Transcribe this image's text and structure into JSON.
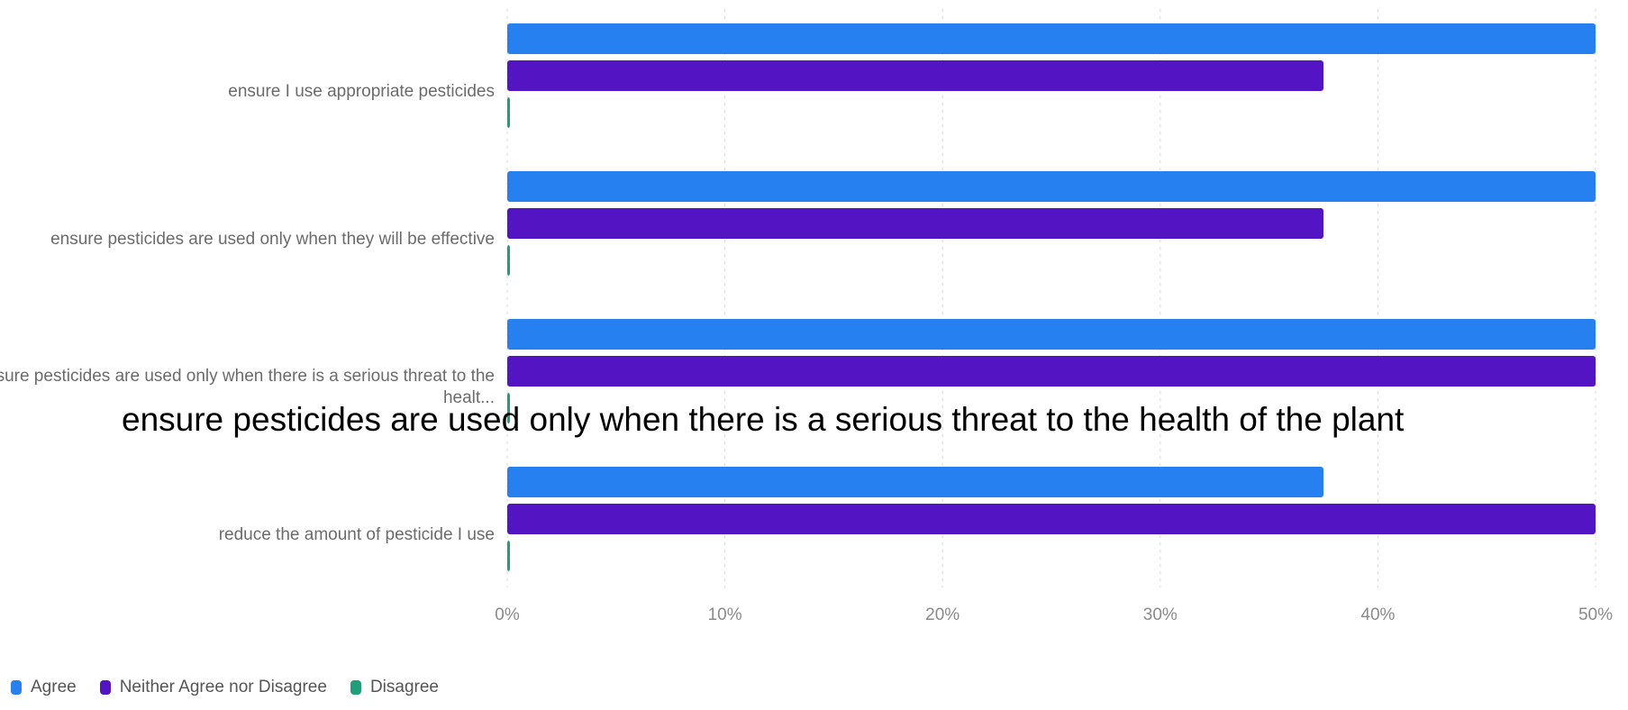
{
  "colors": {
    "agree": "#2680f0",
    "neither": "#5314c4",
    "disagree": "#1f9e7a",
    "grid": "#d9d9d9",
    "text": "#6b6b6b"
  },
  "tooltip": {
    "text": "ensure pesticides are used only when there is a serious threat to the health of the plant"
  },
  "chart_data": {
    "type": "bar",
    "orientation": "horizontal",
    "categories": [
      [
        "ensure I use appropriate pesticides"
      ],
      [
        "ensure pesticides are used only when they will be effective"
      ],
      [
        "ensure pesticides are used only when there is a serious threat to the",
        "healt..."
      ],
      [
        "reduce the amount of pesticide I use"
      ]
    ],
    "series": [
      {
        "name": "Agree",
        "color": "#2680f0",
        "values": [
          50,
          50,
          50,
          37.5
        ]
      },
      {
        "name": "Neither Agree nor Disagree",
        "color": "#5314c4",
        "values": [
          37.5,
          37.5,
          50,
          50
        ]
      },
      {
        "name": "Disagree",
        "color": "#1f9e7a",
        "values": [
          0,
          0,
          0,
          0
        ]
      }
    ],
    "xlim": [
      0,
      50
    ],
    "xticks": [
      "0%",
      "10%",
      "20%",
      "30%",
      "40%",
      "50%"
    ],
    "grid": true,
    "legend_position": "bottom-left",
    "title": "",
    "xlabel": "",
    "ylabel": ""
  }
}
